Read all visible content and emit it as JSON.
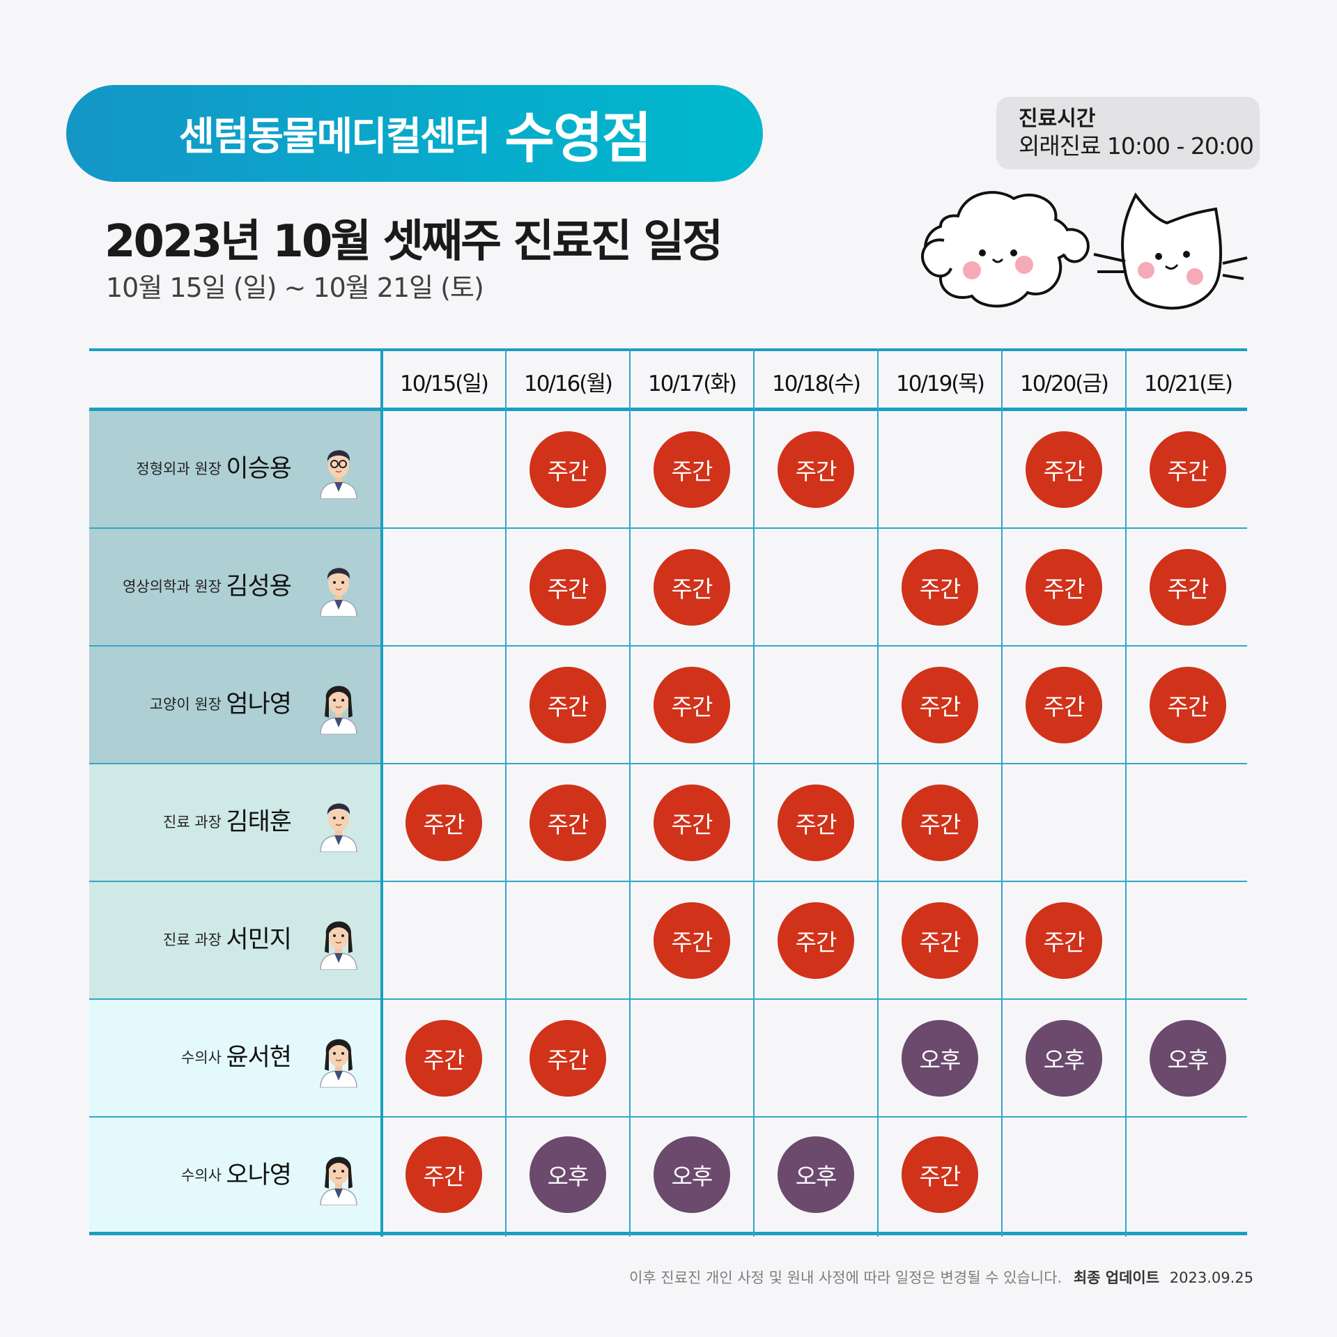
{
  "header": {
    "hospital_name": "센텀동물메디컬센터",
    "branch_name": "수영점",
    "title": "2023년 10월 셋째주 진료진 일정",
    "date_range": "10월 15일 (일) ~ 10월 21일 (토)"
  },
  "hours": {
    "label": "진료시간",
    "value": "외래진료 10:00 - 20:00"
  },
  "colors": {
    "pill_start": "#1496c6",
    "pill_end": "#00b9cd",
    "grid_line": "#1a9fc2",
    "row_tint_1": "#aecfd3",
    "row_tint_2": "#cfe9e6",
    "row_tint_3": "#e4f9fb",
    "badge_day": "#d1321a",
    "badge_pm": "#6b4a6e"
  },
  "days": [
    "10/15(일)",
    "10/16(월)",
    "10/17(화)",
    "10/18(수)",
    "10/19(목)",
    "10/20(금)",
    "10/21(토)"
  ],
  "shift_labels": {
    "D": "주간",
    "P": "오후"
  },
  "doctors": [
    {
      "role": "정형외과 원장",
      "name": "이승용",
      "avatar": "male-doctor-glasses-avatar",
      "tint": "row_tint_1",
      "schedule": [
        "",
        "D",
        "D",
        "D",
        "",
        "D",
        "D"
      ]
    },
    {
      "role": "영상의학과 원장",
      "name": "김성용",
      "avatar": "male-doctor-avatar",
      "tint": "row_tint_1",
      "schedule": [
        "",
        "D",
        "D",
        "",
        "D",
        "D",
        "D"
      ]
    },
    {
      "role": "고양이 원장",
      "name": "엄나영",
      "avatar": "female-doctor-avatar",
      "tint": "row_tint_1",
      "schedule": [
        "",
        "D",
        "D",
        "",
        "D",
        "D",
        "D"
      ]
    },
    {
      "role": "진료 과장",
      "name": "김태훈",
      "avatar": "male-doctor-avatar",
      "tint": "row_tint_2",
      "schedule": [
        "D",
        "D",
        "D",
        "D",
        "D",
        "",
        ""
      ]
    },
    {
      "role": "진료 과장",
      "name": "서민지",
      "avatar": "female-doctor-long-hair-avatar",
      "tint": "row_tint_2",
      "schedule": [
        "",
        "",
        "D",
        "D",
        "D",
        "D",
        ""
      ]
    },
    {
      "role": "수의사",
      "name": "윤서현",
      "avatar": "female-vet-avatar",
      "tint": "row_tint_3",
      "schedule": [
        "D",
        "D",
        "",
        "",
        "P",
        "P",
        "P"
      ]
    },
    {
      "role": "수의사",
      "name": "오나영",
      "avatar": "female-vet-avatar",
      "tint": "row_tint_3",
      "schedule": [
        "D",
        "P",
        "P",
        "P",
        "D",
        "",
        ""
      ]
    }
  ],
  "footer": {
    "notice": "이후 진료진 개인 사정 및 원내 사정에 따라 일정은 변경될 수 있습니다.",
    "update_label": "최종 업데이트",
    "update_date": "2023.09.25"
  }
}
